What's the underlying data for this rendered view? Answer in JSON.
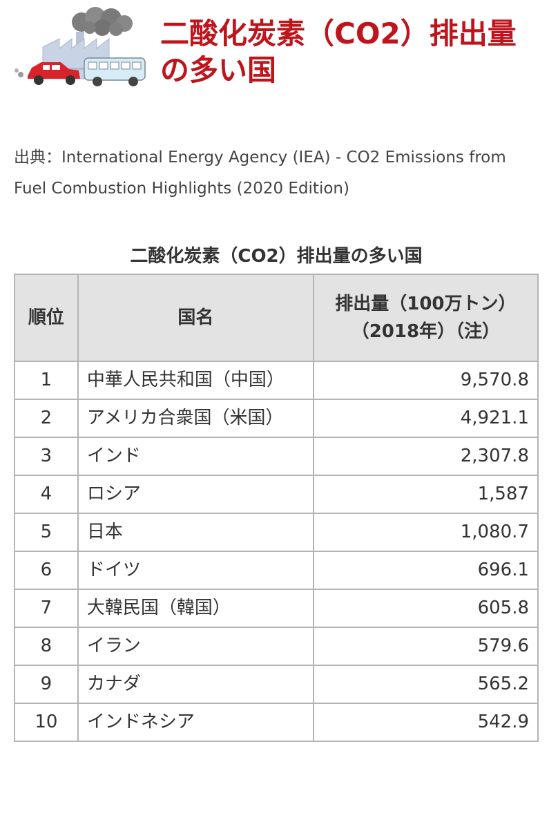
{
  "heading": "二酸化炭素（CO2）排出量の多い国",
  "source": "出典：International Energy Agency (IEA) - CO2 Emissions from Fuel Combustion Highlights (2020 Edition)",
  "table": {
    "caption": "二酸化炭素（CO2）排出量の多い国",
    "headers": {
      "rank": "順位",
      "country": "国名",
      "emission_line1": "排出量（100万トン）",
      "emission_line2": "（2018年）（注）"
    },
    "rows": [
      {
        "rank": "1",
        "country": "中華人民共和国（中国）",
        "value": "9,570.8"
      },
      {
        "rank": "2",
        "country": "アメリカ合衆国（米国）",
        "value": "4,921.1"
      },
      {
        "rank": "3",
        "country": "インド",
        "value": "2,307.8"
      },
      {
        "rank": "4",
        "country": "ロシア",
        "value": "1,587"
      },
      {
        "rank": "5",
        "country": "日本",
        "value": "1,080.7"
      },
      {
        "rank": "6",
        "country": "ドイツ",
        "value": "696.1"
      },
      {
        "rank": "7",
        "country": "大韓民国（韓国）",
        "value": "605.8"
      },
      {
        "rank": "8",
        "country": "イラン",
        "value": "579.6"
      },
      {
        "rank": "9",
        "country": "カナダ",
        "value": "565.2"
      },
      {
        "rank": "10",
        "country": "インドネシア",
        "value": "542.9"
      }
    ]
  },
  "illustration": {
    "icons": [
      "factory-icon",
      "smoke-cloud-icon",
      "car-icon",
      "bus-icon"
    ],
    "colors": {
      "car": "#d8232a",
      "bus": "#d6ecf6",
      "factory": "#c9d3e6",
      "smoke": "#7d7d7d"
    }
  }
}
